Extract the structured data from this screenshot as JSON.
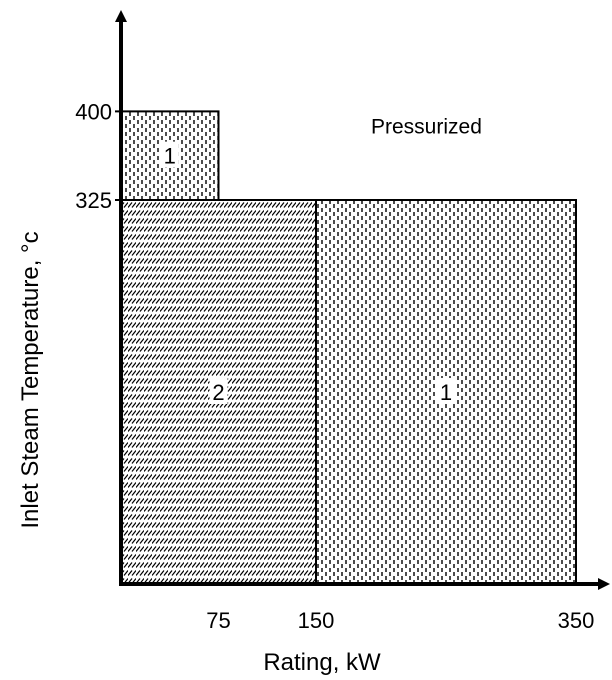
{
  "chart_data": {
    "type": "area",
    "xlabel": "Rating, kW",
    "ylabel": "Inlet Steam Temperature, ",
    "ylabel_unit": "°c",
    "x_ticks": [
      75,
      150,
      350
    ],
    "y_ticks": [
      325,
      400
    ],
    "x_tick_labels": [
      "75",
      "150",
      "350"
    ],
    "y_tick_labels": [
      "325",
      "400"
    ],
    "xlim": [
      0,
      370
    ],
    "ylim": [
      0,
      445
    ],
    "grid": false,
    "regions": [
      {
        "label": "1",
        "x": [
          0,
          75
        ],
        "y": [
          325,
          400
        ],
        "pattern": "dots"
      },
      {
        "label": "2",
        "x": [
          0,
          150
        ],
        "y": [
          0,
          325
        ],
        "pattern": "hatch"
      },
      {
        "label": "1",
        "x": [
          150,
          350
        ],
        "y": [
          0,
          325
        ],
        "pattern": "dots"
      }
    ],
    "annotations": [
      {
        "text": "Pressurized",
        "x": 190,
        "y": 400
      }
    ]
  }
}
